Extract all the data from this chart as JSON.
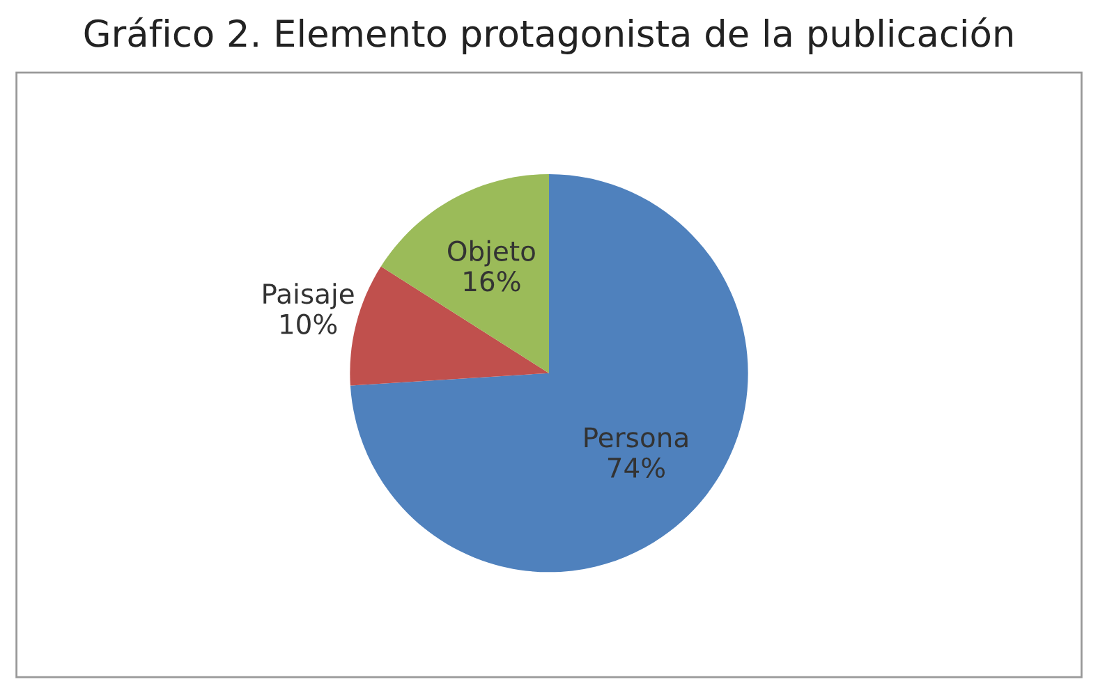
{
  "chart_data": {
    "type": "pie",
    "title": "Gráfico 2. Elemento protagonista de la publicación",
    "categories": [
      "Persona",
      "Paisaje",
      "Objeto"
    ],
    "values": [
      74,
      10,
      16
    ],
    "colors": [
      "#4f81bd",
      "#c0504d",
      "#9bbb59"
    ],
    "value_labels": [
      "74%",
      "10%",
      "16%"
    ],
    "legend": false
  }
}
